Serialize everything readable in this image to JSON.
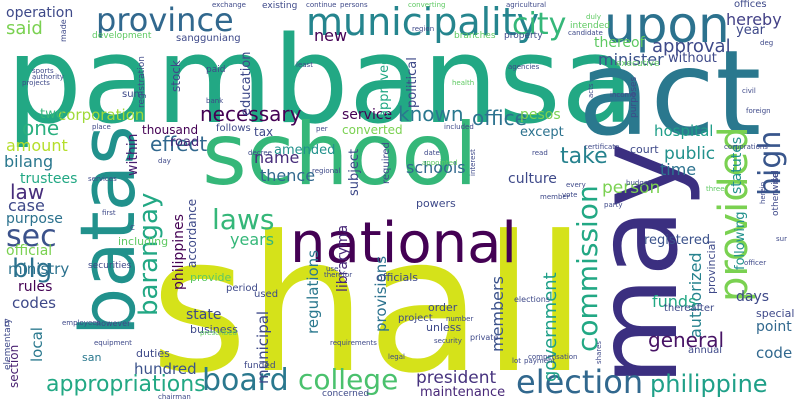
{
  "words": [
    {
      "id": "shall",
      "text": "shall",
      "color": "#d5e21a"
    },
    {
      "id": "pambansa",
      "text": "pambansa",
      "color": "#22a884"
    },
    {
      "id": "act",
      "text": "act",
      "color": "#2a788e"
    },
    {
      "id": "school",
      "text": "school",
      "color": "#35b779"
    },
    {
      "id": "may",
      "text": "may",
      "color": "#3b2f80"
    },
    {
      "id": "batas",
      "text": "batas",
      "color": "#21918c"
    },
    {
      "id": "national",
      "text": "national",
      "color": "#440154"
    },
    {
      "id": "upon",
      "text": "upon",
      "color": "#2c728e"
    },
    {
      "id": "municipality",
      "text": "municipality",
      "color": "#25858e"
    },
    {
      "id": "province",
      "text": "province",
      "color": "#31688e"
    },
    {
      "id": "provided",
      "text": "provided",
      "color": "#7ad151"
    },
    {
      "id": "city",
      "text": "city",
      "color": "#35b779"
    },
    {
      "id": "board",
      "text": "board",
      "color": "#2a788e"
    },
    {
      "id": "election",
      "text": "election",
      "color": "#31688e"
    },
    {
      "id": "college",
      "text": "college",
      "color": "#4ac16d"
    },
    {
      "id": "commission",
      "text": "commission",
      "color": "#22a884"
    },
    {
      "id": "laws",
      "text": "laws",
      "color": "#35b779"
    },
    {
      "id": "sec",
      "text": "sec",
      "color": "#3b528b"
    },
    {
      "id": "high",
      "text": "high",
      "color": "#39568c"
    },
    {
      "id": "barangay",
      "text": "barangay",
      "color": "#22a884"
    },
    {
      "id": "philippine",
      "text": "philippine",
      "color": "#1fa088"
    },
    {
      "id": "appropriations",
      "text": "appropriations",
      "color": "#22a884"
    },
    {
      "id": "blg",
      "text": "blg",
      "color": "#2c728e"
    },
    {
      "id": "necessary",
      "text": "necessary",
      "color": "#440154"
    },
    {
      "id": "effect",
      "text": "effect",
      "color": "#31688e"
    },
    {
      "id": "known",
      "text": "known",
      "color": "#2a788e"
    },
    {
      "id": "office",
      "text": "office",
      "color": "#2c728e"
    },
    {
      "id": "general",
      "text": "general",
      "color": "#471365"
    },
    {
      "id": "take",
      "text": "take",
      "color": "#26828e"
    },
    {
      "id": "approval",
      "text": "approval",
      "color": "#3e4989"
    },
    {
      "id": "said",
      "text": "said",
      "color": "#7ad151"
    },
    {
      "id": "president",
      "text": "president",
      "color": "#46327e"
    },
    {
      "id": "government",
      "text": "government",
      "color": "#1fa088"
    },
    {
      "id": "one",
      "text": "one",
      "color": "#29af7f"
    },
    {
      "id": "law",
      "text": "law",
      "color": "#472d7b"
    },
    {
      "id": "corporation",
      "text": "corporation",
      "color": "#a0da39"
    },
    {
      "id": "minister",
      "text": "minister",
      "color": "#3b528b"
    },
    {
      "id": "hereby",
      "text": "hereby",
      "color": "#424086"
    },
    {
      "id": "operation",
      "text": "operation",
      "color": "#3e4989"
    },
    {
      "id": "person",
      "text": "person",
      "color": "#7ad151"
    },
    {
      "id": "public",
      "text": "public",
      "color": "#21918c"
    },
    {
      "id": "hospital",
      "text": "hospital",
      "color": "#1f9e89"
    },
    {
      "id": "code",
      "text": "code",
      "color": "#31688e"
    },
    {
      "id": "amount",
      "text": "amount",
      "color": "#b5de2b"
    },
    {
      "id": "bilang",
      "text": "bilang",
      "color": "#2a788e"
    },
    {
      "id": "case",
      "text": "case",
      "color": "#3e4989"
    },
    {
      "id": "ministry",
      "text": "ministry",
      "color": "#2c728e"
    },
    {
      "id": "codes",
      "text": "codes",
      "color": "#3e4989"
    },
    {
      "id": "rules",
      "text": "rules",
      "color": "#440154"
    },
    {
      "id": "name",
      "text": "name",
      "color": "#472d7b"
    },
    {
      "id": "thence",
      "text": "thence",
      "color": "#31688e"
    },
    {
      "id": "years",
      "text": "years",
      "color": "#35b779"
    },
    {
      "id": "authorized",
      "text": "authorized",
      "color": "#26828e"
    },
    {
      "id": "schools",
      "text": "schools",
      "color": "#31688e"
    },
    {
      "id": "new",
      "text": "new",
      "color": "#440154"
    },
    {
      "id": "point",
      "text": "point",
      "color": "#31688e"
    },
    {
      "id": "days",
      "text": "days",
      "color": "#3e4989"
    },
    {
      "id": "time",
      "text": "time",
      "color": "#2c728e"
    },
    {
      "id": "thereof",
      "text": "thereof",
      "color": "#5ec962"
    },
    {
      "id": "hundred",
      "text": "hundred",
      "color": "#3b528b"
    },
    {
      "id": "local",
      "text": "local",
      "color": "#2a788e"
    },
    {
      "id": "members",
      "text": "members",
      "color": "#3b528b"
    },
    {
      "id": "maintenance",
      "text": "maintenance",
      "color": "#482878"
    },
    {
      "id": "funds",
      "text": "funds",
      "color": "#22a884"
    },
    {
      "id": "state",
      "text": "state",
      "color": "#3e4989"
    },
    {
      "id": "trustees",
      "text": "trustees",
      "color": "#22a884"
    },
    {
      "id": "purpose",
      "text": "purpose",
      "color": "#2c728e"
    },
    {
      "id": "official",
      "text": "official",
      "color": "#7ad151"
    },
    {
      "id": "section",
      "text": "section",
      "color": "#481f70"
    },
    {
      "id": "within",
      "text": "within",
      "color": "#481f70"
    },
    {
      "id": "philippines",
      "text": "philippines",
      "color": "#440154"
    },
    {
      "id": "regulations",
      "text": "regulations",
      "color": "#2a788e"
    },
    {
      "id": "municipal",
      "text": "municipal",
      "color": "#3e4989"
    },
    {
      "id": "provisions",
      "text": "provisions",
      "color": "#2c728e"
    },
    {
      "id": "service",
      "text": "service",
      "color": "#440154"
    },
    {
      "id": "converted",
      "text": "converted",
      "color": "#7ad151"
    },
    {
      "id": "amended",
      "text": "amended",
      "color": "#21918c"
    },
    {
      "id": "subject",
      "text": "subject",
      "color": "#3e4989"
    },
    {
      "id": "culture",
      "text": "culture",
      "color": "#3e4989"
    },
    {
      "id": "statutes",
      "text": "statutes",
      "color": "#21918c"
    },
    {
      "id": "following",
      "text": "following",
      "color": "#21918c"
    },
    {
      "id": "registered",
      "text": "registered",
      "color": "#3b528b"
    },
    {
      "id": "libraryma",
      "text": "libraryma",
      "color": "#482878"
    },
    {
      "id": "thousand",
      "text": "thousand",
      "color": "#440154"
    },
    {
      "id": "road",
      "text": "road",
      "color": "#482878"
    },
    {
      "id": "two",
      "text": "two",
      "color": "#35b779"
    },
    {
      "id": "pesos",
      "text": "pesos",
      "color": "#7ad151"
    },
    {
      "id": "except",
      "text": "except",
      "color": "#2c728e"
    },
    {
      "id": "approved",
      "text": "approved",
      "color": "#22a884"
    },
    {
      "id": "political",
      "text": "political",
      "color": "#3e4989"
    },
    {
      "id": "education",
      "text": "education",
      "color": "#3e4989"
    },
    {
      "id": "stock",
      "text": "stock",
      "color": "#3e4989"
    },
    {
      "id": "without",
      "text": "without",
      "color": "#3e4989"
    },
    {
      "id": "year",
      "text": "year",
      "color": "#3e4989"
    },
    {
      "id": "provincial",
      "text": "provincial",
      "color": "#3e4989"
    },
    {
      "id": "special",
      "text": "special",
      "color": "#3e4989"
    },
    {
      "id": "accordance",
      "text": "accordance",
      "color": "#3e4989"
    },
    {
      "id": "business",
      "text": "business",
      "color": "#3e4989"
    },
    {
      "id": "duties",
      "text": "duties",
      "color": "#3e4989"
    },
    {
      "id": "provide",
      "text": "provide",
      "color": "#5ec962"
    },
    {
      "id": "period",
      "text": "period",
      "color": "#3e4989"
    },
    {
      "id": "used",
      "text": "used",
      "color": "#3e4989"
    },
    {
      "id": "tax",
      "text": "tax",
      "color": "#3e4989"
    },
    {
      "id": "follows",
      "text": "follows",
      "color": "#3e4989"
    },
    {
      "id": "order",
      "text": "order",
      "color": "#3e4989"
    },
    {
      "id": "unless",
      "text": "unless",
      "color": "#3e4989"
    },
    {
      "id": "officials",
      "text": "officials",
      "color": "#3e4989"
    },
    {
      "id": "project",
      "text": "project",
      "color": "#3e4989"
    },
    {
      "id": "powers",
      "text": "powers",
      "color": "#3e4989"
    },
    {
      "id": "thereafter",
      "text": "thereafter",
      "color": "#3e4989"
    },
    {
      "id": "annual",
      "text": "annual",
      "color": "#3e4989"
    },
    {
      "id": "concerned",
      "text": "concerned",
      "color": "#3e4989"
    },
    {
      "id": "funded",
      "text": "funded",
      "color": "#3e4989"
    },
    {
      "id": "including",
      "text": "including",
      "color": "#5ec962"
    },
    {
      "id": "san",
      "text": "san",
      "color": "#2a788e"
    },
    {
      "id": "however",
      "text": "however",
      "color": "#3e4989"
    },
    {
      "id": "paid",
      "text": "paid",
      "color": "#3e4989"
    },
    {
      "id": "sum",
      "text": "sum",
      "color": "#3e4989"
    },
    {
      "id": "required",
      "text": "required",
      "color": "#3e4989"
    },
    {
      "id": "court",
      "text": "court",
      "color": "#3e4989"
    },
    {
      "id": "offices",
      "text": "offices",
      "color": "#3e4989"
    },
    {
      "id": "sangguniang",
      "text": "sangguniang",
      "color": "#3e4989"
    },
    {
      "id": "development",
      "text": "development",
      "color": "#5ec962"
    },
    {
      "id": "branches",
      "text": "branches",
      "color": "#5ec962"
    },
    {
      "id": "property",
      "text": "property",
      "color": "#3e4989"
    },
    {
      "id": "intended",
      "text": "intended",
      "color": "#5ec962"
    },
    {
      "id": "existing",
      "text": "existing",
      "color": "#3e4989"
    },
    {
      "id": "made",
      "text": "made",
      "color": "#3e4989"
    },
    {
      "id": "registration",
      "text": "registration",
      "color": "#3e4989"
    },
    {
      "id": "executive",
      "text": "executive",
      "color": "#5ec962"
    },
    {
      "id": "elementary",
      "text": "elementary",
      "color": "#3e4989"
    },
    {
      "id": "securities",
      "text": "securities",
      "color": "#3e4989"
    },
    {
      "id": "otherwise",
      "text": "otherwise",
      "color": "#3e4989"
    },
    {
      "id": "del",
      "text": "del",
      "color": "#3e4989"
    },
    {
      "id": "number",
      "text": "number",
      "color": "#3e4989"
    },
    {
      "id": "security",
      "text": "security",
      "color": "#3e4989"
    },
    {
      "id": "private",
      "text": "private",
      "color": "#3e4989"
    },
    {
      "id": "elections",
      "text": "elections",
      "color": "#3e4989"
    },
    {
      "id": "agricultural",
      "text": "agricultural",
      "color": "#3e4989"
    },
    {
      "id": "exchange",
      "text": "exchange",
      "color": "#3e4989"
    },
    {
      "id": "continue",
      "text": "continue",
      "color": "#3e4989"
    },
    {
      "id": "persons",
      "text": "persons",
      "color": "#3e4989"
    },
    {
      "id": "converting",
      "text": "converting",
      "color": "#5ec962"
    },
    {
      "id": "candidate",
      "text": "candidate",
      "color": "#3e4989"
    },
    {
      "id": "agencies",
      "text": "agencies",
      "color": "#3e4989"
    },
    {
      "id": "purposes",
      "text": "purposes",
      "color": "#3e4989"
    },
    {
      "id": "income",
      "text": "income",
      "color": "#3e4989"
    },
    {
      "id": "corporations",
      "text": "corporations",
      "color": "#3e4989"
    },
    {
      "id": "certificate",
      "text": "certificate",
      "color": "#3e4989"
    },
    {
      "id": "budget",
      "text": "budget",
      "color": "#3e4989"
    },
    {
      "id": "compensation",
      "text": "compensation",
      "color": "#3e4989"
    },
    {
      "id": "payment",
      "text": "payment",
      "color": "#3e4989"
    },
    {
      "id": "chairman",
      "text": "chairman",
      "color": "#3e4989"
    },
    {
      "id": "vote",
      "text": "vote",
      "color": "#3e4989"
    },
    {
      "id": "party",
      "text": "party",
      "color": "#3e4989"
    },
    {
      "id": "member",
      "text": "member",
      "color": "#3e4989"
    },
    {
      "id": "every",
      "text": "every",
      "color": "#3e4989"
    },
    {
      "id": "equipment",
      "text": "equipment",
      "color": "#3e4989"
    },
    {
      "id": "employees",
      "text": "employees",
      "color": "#3e4989"
    },
    {
      "id": "prescribed",
      "text": "prescribed",
      "color": "#5ec962"
    },
    {
      "id": "requirements",
      "text": "requirements",
      "color": "#3e4989"
    },
    {
      "id": "appointed",
      "text": "appointed",
      "color": "#5ec962"
    },
    {
      "id": "regional",
      "text": "regional",
      "color": "#3e4989"
    },
    {
      "id": "services",
      "text": "services",
      "color": "#3e4989"
    },
    {
      "id": "decree",
      "text": "decree",
      "color": "#3e4989"
    },
    {
      "id": "date",
      "text": "date",
      "color": "#3e4989"
    },
    {
      "id": "read",
      "text": "read",
      "color": "#3e4989"
    },
    {
      "id": "interest",
      "text": "interest",
      "color": "#3e4989"
    },
    {
      "id": "included",
      "text": "included",
      "color": "#3e4989"
    },
    {
      "id": "health",
      "text": "health",
      "color": "#5ec962"
    },
    {
      "id": "foreign",
      "text": "foreign",
      "color": "#3e4989"
    },
    {
      "id": "civil",
      "text": "civil",
      "color": "#3e4989"
    },
    {
      "id": "officer",
      "text": "officer",
      "color": "#3e4989"
    },
    {
      "id": "sports",
      "text": "sports",
      "color": "#3e4989"
    },
    {
      "id": "authority",
      "text": "authority",
      "color": "#3e4989"
    },
    {
      "id": "projects",
      "text": "projects",
      "color": "#3e4989"
    },
    {
      "id": "bank",
      "text": "bank",
      "color": "#3e4989"
    },
    {
      "id": "place",
      "text": "place",
      "color": "#3e4989"
    },
    {
      "id": "day",
      "text": "day",
      "color": "#3e4989"
    },
    {
      "id": "first",
      "text": "first",
      "color": "#3e4989"
    },
    {
      "id": "use",
      "text": "use",
      "color": "#3e4989"
    },
    {
      "id": "therefor",
      "text": "therefor",
      "color": "#3e4989"
    },
    {
      "id": "per",
      "text": "per",
      "color": "#3e4989"
    },
    {
      "id": "least",
      "text": "least",
      "color": "#3e4989"
    },
    {
      "id": "region",
      "text": "region",
      "color": "#3e4989"
    },
    {
      "id": "duly",
      "text": "duly",
      "color": "#5ec962"
    },
    {
      "id": "deg",
      "text": "deg",
      "color": "#3e4989"
    },
    {
      "id": "sur",
      "text": "sur",
      "color": "#3e4989"
    },
    {
      "id": "herein",
      "text": "herein",
      "color": "#3e4989"
    },
    {
      "id": "legal",
      "text": "legal",
      "color": "#3e4989"
    },
    {
      "id": "shares",
      "text": "shares",
      "color": "#3e4989"
    },
    {
      "id": "acts",
      "text": "acts",
      "color": "#3e4989"
    },
    {
      "id": "lot",
      "text": "lot",
      "color": "#3e4989"
    },
    {
      "id": "three",
      "text": "three",
      "color": "#5ec962"
    },
    {
      "id": "c",
      "text": "c",
      "color": "#3e4989"
    },
    {
      "id": "b",
      "text": "b",
      "color": "#3e4989"
    }
  ]
}
